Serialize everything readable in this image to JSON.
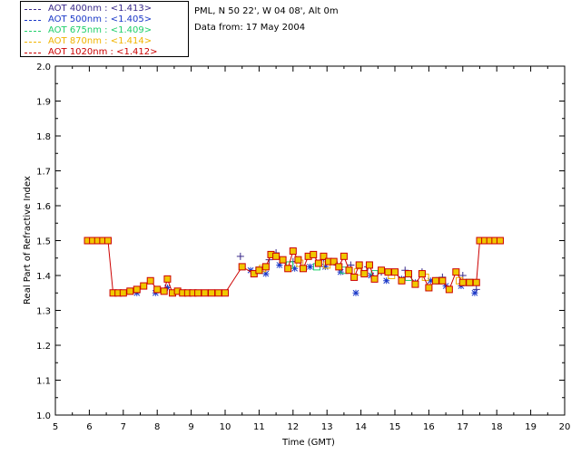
{
  "info": {
    "line1": "PML, N 50 22', W 04 08', Alt 0m",
    "line2": "Data from: 17 May 2004"
  },
  "chart_data": {
    "type": "scatter",
    "xlabel": "Time (GMT)",
    "ylabel": "Real Part of Refractive Index",
    "xlim": [
      5,
      20
    ],
    "ylim": [
      1.0,
      2.0
    ],
    "xticks": [
      5,
      6,
      7,
      8,
      9,
      10,
      11,
      12,
      13,
      14,
      15,
      16,
      17,
      18,
      19,
      20
    ],
    "yticks": [
      1.0,
      1.1,
      1.2,
      1.3,
      1.4,
      1.5,
      1.6,
      1.7,
      1.8,
      1.9,
      2.0
    ],
    "legend_position": "top-left",
    "series": [
      {
        "name": "AOT  400nm : <1.413>",
        "color": "#3a2a8a",
        "marker": "plus",
        "x": [
          10.45,
          11.3,
          11.5,
          12.0,
          12.9,
          13.3,
          13.7,
          14.2,
          14.6,
          15.3,
          15.8,
          16.4,
          17.0,
          17.4
        ],
        "y": [
          1.455,
          1.445,
          1.465,
          1.44,
          1.445,
          1.43,
          1.43,
          1.425,
          1.41,
          1.415,
          1.41,
          1.395,
          1.4,
          1.36
        ]
      },
      {
        "name": "AOT  500nm : <1.405>",
        "color": "#1a38c8",
        "marker": "star",
        "x": [
          6.85,
          7.4,
          7.95,
          8.3,
          8.9,
          10.75,
          11.2,
          11.6,
          12.05,
          12.5,
          12.95,
          13.4,
          13.85,
          14.3,
          14.75,
          15.2,
          15.6,
          16.05,
          16.5,
          16.95,
          17.35
        ],
        "y": [
          1.35,
          1.35,
          1.35,
          1.365,
          1.35,
          1.415,
          1.405,
          1.43,
          1.42,
          1.425,
          1.425,
          1.41,
          1.35,
          1.4,
          1.385,
          1.39,
          1.38,
          1.385,
          1.37,
          1.37,
          1.35
        ]
      },
      {
        "name": "AOT  675nm : <1.409>",
        "color": "#1fcf6a",
        "marker": "square",
        "x": [
          11.0,
          11.9,
          12.7,
          13.5,
          14.4,
          15.4,
          16.3,
          17.2
        ],
        "y": [
          1.415,
          1.43,
          1.425,
          1.415,
          1.405,
          1.395,
          1.385,
          1.38
        ]
      },
      {
        "name": "AOT  870nm : <1.414>",
        "color": "#f0b400",
        "marker": "square",
        "x": [
          11.1,
          12.2,
          13.0,
          13.9,
          14.9,
          15.9,
          16.9
        ],
        "y": [
          1.42,
          1.435,
          1.43,
          1.41,
          1.4,
          1.395,
          1.385
        ]
      },
      {
        "name": "AOT 1020nm : <1.412>",
        "color": "#cc0000",
        "marker": "square-line",
        "x": [
          5.95,
          6.1,
          6.25,
          6.4,
          6.55,
          6.7,
          6.85,
          7.0,
          7.2,
          7.4,
          7.6,
          7.8,
          8.0,
          8.2,
          8.3,
          8.45,
          8.6,
          8.75,
          8.9,
          9.05,
          9.2,
          9.4,
          9.6,
          9.8,
          10.0,
          10.5,
          10.85,
          11.0,
          11.2,
          11.35,
          11.5,
          11.7,
          11.85,
          12.0,
          12.15,
          12.3,
          12.45,
          12.6,
          12.75,
          12.9,
          13.05,
          13.2,
          13.35,
          13.5,
          13.65,
          13.8,
          13.95,
          14.1,
          14.25,
          14.4,
          14.6,
          14.8,
          15.0,
          15.2,
          15.4,
          15.6,
          15.8,
          16.0,
          16.2,
          16.4,
          16.6,
          16.8,
          17.0,
          17.2,
          17.4,
          17.5,
          17.65,
          17.8,
          17.95,
          18.1
        ],
        "y": [
          1.5,
          1.5,
          1.5,
          1.5,
          1.5,
          1.35,
          1.35,
          1.35,
          1.355,
          1.36,
          1.37,
          1.385,
          1.36,
          1.355,
          1.39,
          1.35,
          1.355,
          1.35,
          1.35,
          1.35,
          1.35,
          1.35,
          1.35,
          1.35,
          1.35,
          1.425,
          1.405,
          1.415,
          1.425,
          1.46,
          1.455,
          1.445,
          1.42,
          1.47,
          1.445,
          1.42,
          1.455,
          1.46,
          1.435,
          1.455,
          1.44,
          1.44,
          1.425,
          1.455,
          1.415,
          1.395,
          1.43,
          1.405,
          1.43,
          1.39,
          1.415,
          1.41,
          1.41,
          1.385,
          1.405,
          1.375,
          1.405,
          1.365,
          1.385,
          1.385,
          1.36,
          1.41,
          1.38,
          1.38,
          1.38,
          1.5,
          1.5,
          1.5,
          1.5,
          1.5
        ]
      }
    ]
  }
}
